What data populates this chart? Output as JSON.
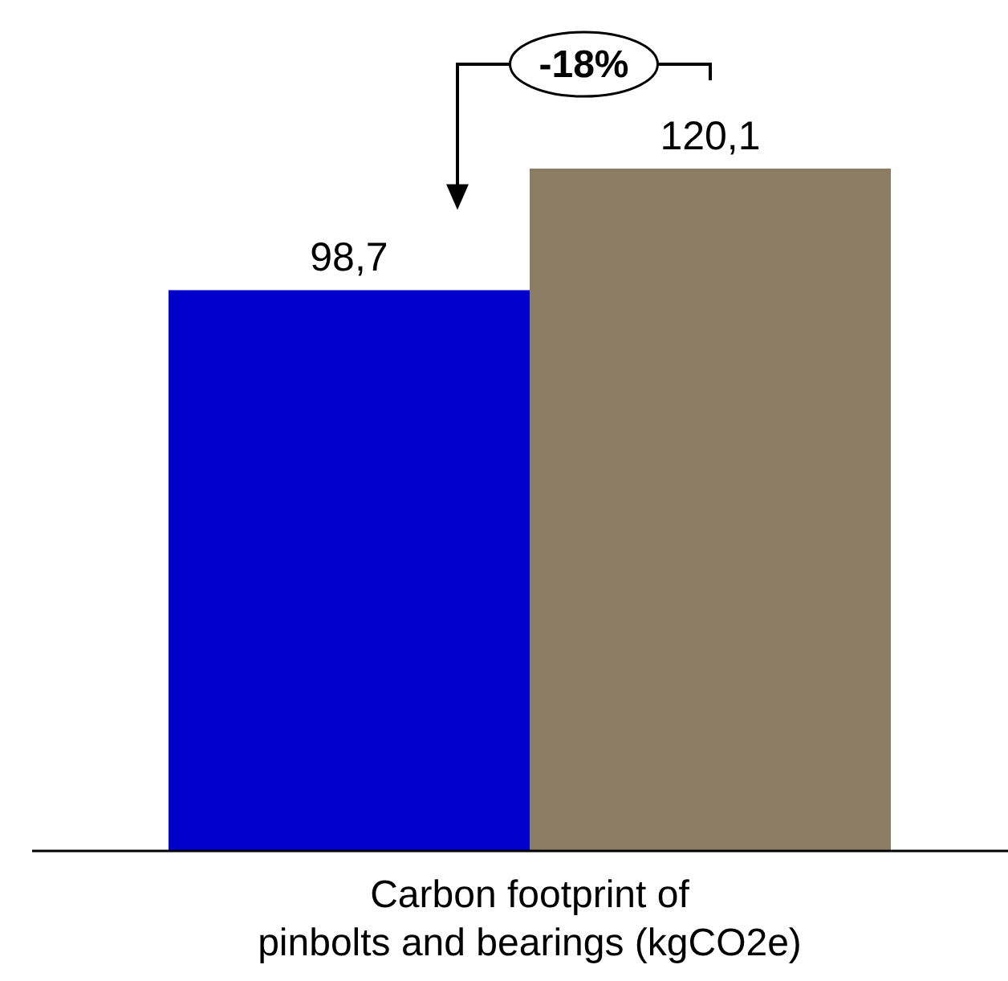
{
  "chart_data": {
    "type": "bar",
    "categories": [
      null,
      null
    ],
    "values": [
      98.7,
      120.1
    ],
    "colors": [
      "#0000cc",
      "#8b7d63"
    ],
    "value_labels": [
      "98,7",
      "120,1"
    ],
    "xlabel": "Carbon footprint of\npinbolts and bearings (kgCO2e)",
    "annotations": [
      "-18%"
    ]
  }
}
